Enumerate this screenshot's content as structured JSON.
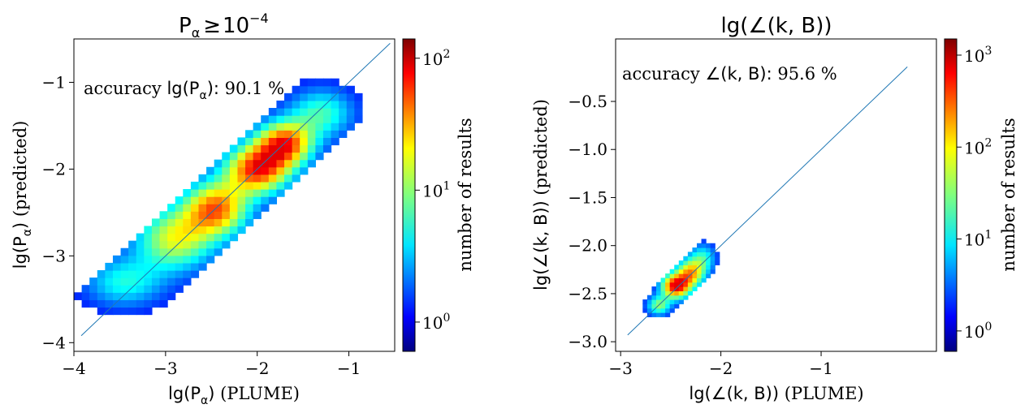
{
  "chart_data": [
    {
      "type": "heatmap",
      "subtype": "2d-density",
      "title_base": "P",
      "title_sub": "α",
      "title_rel": "≥",
      "title_num": "10",
      "title_exp": "−4",
      "xlabel_main": "lg(P",
      "xlabel_sub": "α",
      "xlabel_close": ")",
      "xlabel_suffix": " (PLUME)",
      "ylabel_main": "lg(P",
      "ylabel_sub": "α",
      "ylabel_close": ")",
      "ylabel_suffix": " (predicted)",
      "xlim": [
        -4,
        -0.5
      ],
      "ylim": [
        -4.1,
        -0.5
      ],
      "xticks": [
        {
          "value": -4,
          "label": "−4"
        },
        {
          "value": -3,
          "label": "−3"
        },
        {
          "value": -2,
          "label": "−2"
        },
        {
          "value": -1,
          "label": "−1"
        }
      ],
      "yticks": [
        {
          "value": -4,
          "label": "−4"
        },
        {
          "value": -3,
          "label": "−3"
        },
        {
          "value": -2,
          "label": "−2"
        },
        {
          "value": -1,
          "label": "−1"
        }
      ],
      "diagonal": [
        [
          -3.92,
          -3.92
        ],
        [
          -0.55,
          -0.55
        ]
      ],
      "annotation_prefix": "accuracy ",
      "annotation_sym": "lg(P",
      "annotation_sub": "α",
      "annotation_close": "):",
      "annotation_value": " 90.1 %",
      "density_blobs": [
        {
          "cx": -3.45,
          "cy": -3.3,
          "sx": 0.3,
          "sy": 0.2,
          "w": 0.35
        },
        {
          "cx": -2.9,
          "cy": -2.8,
          "sx": 0.3,
          "sy": 0.25,
          "w": 0.6
        },
        {
          "cx": -2.45,
          "cy": -2.45,
          "sx": 0.25,
          "sy": 0.22,
          "w": 0.8
        },
        {
          "cx": -2.0,
          "cy": -2.0,
          "sx": 0.25,
          "sy": 0.2,
          "w": 0.9
        },
        {
          "cx": -1.7,
          "cy": -1.7,
          "sx": 0.22,
          "sy": 0.18,
          "w": 0.85
        },
        {
          "cx": -1.3,
          "cy": -1.35,
          "sx": 0.25,
          "sy": 0.2,
          "w": 0.4
        }
      ],
      "colorbar": {
        "label": "number of results",
        "scale": "log",
        "range": [
          0.6,
          140
        ],
        "ticks": [
          {
            "value": 1,
            "base": "10",
            "exp": "0"
          },
          {
            "value": 10,
            "base": "10",
            "exp": "1"
          },
          {
            "value": 100,
            "base": "10",
            "exp": "2"
          }
        ]
      }
    },
    {
      "type": "heatmap",
      "subtype": "2d-density",
      "title_main": "lg(∠(k, B))",
      "xlabel_main": "lg(∠(k, B))",
      "xlabel_suffix": " (PLUME)",
      "ylabel_main": "lg(∠(k, B))",
      "ylabel_suffix": " (predicted)",
      "xlim": [
        -3.05,
        0.15
      ],
      "ylim": [
        -3.1,
        0.15
      ],
      "xticks": [
        {
          "value": -3,
          "label": "−3"
        },
        {
          "value": -2,
          "label": "−2"
        },
        {
          "value": -1,
          "label": "−1"
        }
      ],
      "yticks": [
        {
          "value": -3.0,
          "label": "−3.0"
        },
        {
          "value": -2.5,
          "label": "−2.5"
        },
        {
          "value": -2.0,
          "label": "−2.0"
        },
        {
          "value": -1.5,
          "label": "−1.5"
        },
        {
          "value": -1.0,
          "label": "−1.0"
        },
        {
          "value": -0.5,
          "label": "−0.5"
        }
      ],
      "diagonal": [
        [
          -2.93,
          -2.93
        ],
        [
          -0.14,
          -0.14
        ]
      ],
      "annotation_prefix": "accuracy ",
      "annotation_sym": "∠(k, B):",
      "annotation_value": " 95.6 %",
      "density_blobs": [
        {
          "cx": -2.62,
          "cy": -2.62,
          "sx": 0.08,
          "sy": 0.07,
          "w": 0.5
        },
        {
          "cx": -2.45,
          "cy": -2.42,
          "sx": 0.1,
          "sy": 0.09,
          "w": 1.0
        },
        {
          "cx": -2.3,
          "cy": -2.28,
          "sx": 0.1,
          "sy": 0.1,
          "w": 0.7
        },
        {
          "cx": -2.18,
          "cy": -2.12,
          "sx": 0.09,
          "sy": 0.1,
          "w": 0.35
        }
      ],
      "colorbar": {
        "label": "number of results",
        "scale": "log",
        "range": [
          0.6,
          1500
        ],
        "ticks": [
          {
            "value": 1,
            "base": "10",
            "exp": "0"
          },
          {
            "value": 10,
            "base": "10",
            "exp": "1"
          },
          {
            "value": 100,
            "base": "10",
            "exp": "2"
          },
          {
            "value": 1000,
            "base": "10",
            "exp": "3"
          }
        ]
      }
    }
  ]
}
